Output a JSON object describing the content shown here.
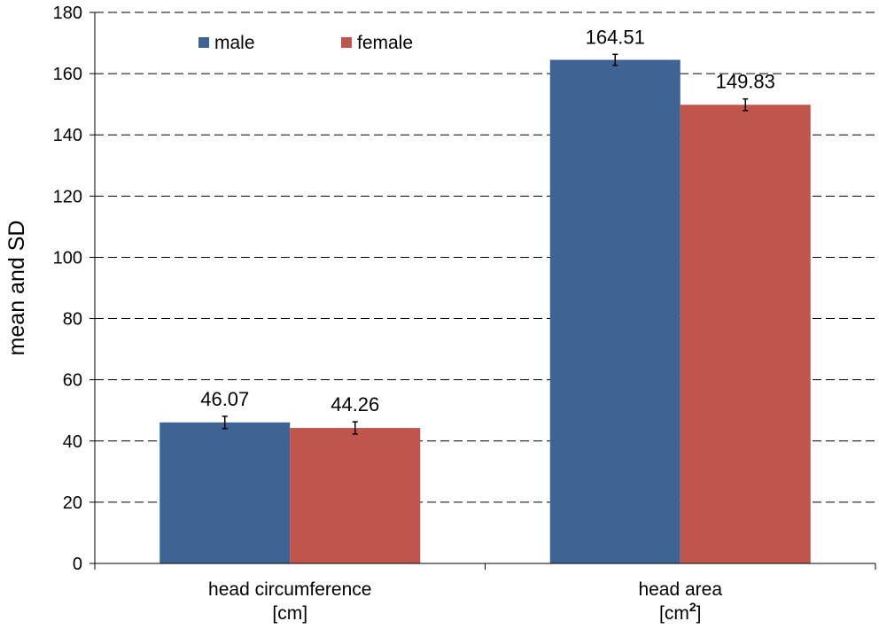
{
  "chart_data": {
    "type": "bar",
    "ylabel": "mean and SD",
    "ylim": [
      0,
      180
    ],
    "yticks": [
      0,
      20,
      40,
      60,
      80,
      100,
      120,
      140,
      160,
      180
    ],
    "grid": "horizontal-dashed",
    "legend_position": "top-left",
    "categories": [
      {
        "line1": "head circumference",
        "line2_base": "[cm]",
        "line2_sup": ""
      },
      {
        "line1": "head area",
        "line2_base": "[cm",
        "line2_sup": "2",
        "line2_end": "]"
      }
    ],
    "series": [
      {
        "name": "male",
        "color": "#3F6393",
        "values": [
          46.07,
          164.51
        ],
        "sd": [
          2.0,
          1.8
        ],
        "labels": [
          "46.07",
          "164.51"
        ]
      },
      {
        "name": "female",
        "color": "#C0554E",
        "values": [
          44.26,
          149.83
        ],
        "sd": [
          2.0,
          1.9
        ],
        "labels": [
          "44.26",
          "149.83"
        ]
      }
    ]
  }
}
